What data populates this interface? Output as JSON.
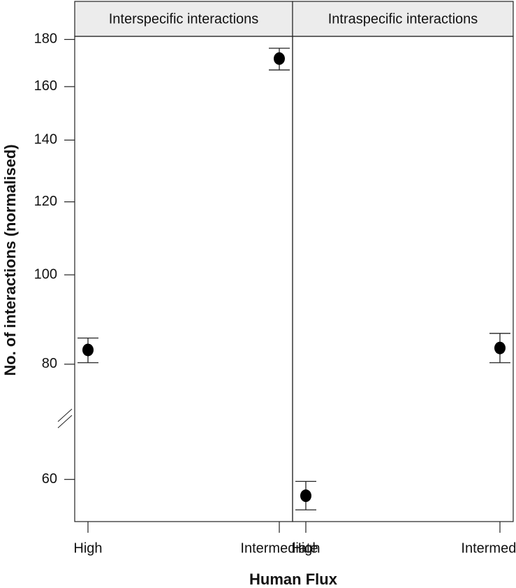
{
  "chart_data": [
    {
      "type": "errorpoint",
      "title": "Interspecific interactions",
      "ylabel": "No. of interactions (normalised)",
      "xlabel": "Human Flux",
      "categories": [
        "High",
        "Intermediate"
      ],
      "series": [
        {
          "values": [
            82.9,
            171.6
          ],
          "error_low": [
            80.3,
            166.8
          ],
          "error_high": [
            85.4,
            176.1
          ],
          "color": "#000000"
        }
      ],
      "ylim": [
        54,
        181.4
      ],
      "yticks": [
        60,
        80,
        100,
        120,
        140,
        160,
        180
      ],
      "log_scale": true
    },
    {
      "type": "errorpoint",
      "title": "Intraspecific interactions",
      "categories": [
        "High",
        "Intermediate"
      ],
      "series": [
        {
          "values": [
            57.6,
            83.3
          ],
          "error_low": [
            55.6,
            80.3
          ],
          "error_high": [
            59.7,
            86.4
          ],
          "color": "#000000"
        }
      ],
      "ylim": [
        54,
        181.4
      ],
      "log_scale": true
    }
  ]
}
